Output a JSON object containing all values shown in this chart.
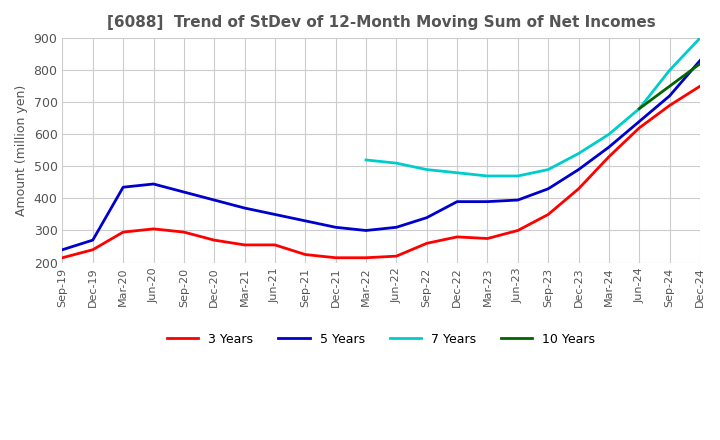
{
  "title": "[6088]  Trend of StDev of 12-Month Moving Sum of Net Incomes",
  "ylabel": "Amount (million yen)",
  "ylim": [
    200,
    900
  ],
  "yticks": [
    200,
    300,
    400,
    500,
    600,
    700,
    800,
    900
  ],
  "background_color": "#ffffff",
  "grid_color": "#cccccc",
  "xtick_labels": [
    "Sep-19",
    "Dec-19",
    "Mar-20",
    "Jun-20",
    "Sep-20",
    "Dec-20",
    "Mar-21",
    "Jun-21",
    "Sep-21",
    "Dec-21",
    "Mar-22",
    "Jun-22",
    "Sep-22",
    "Dec-22",
    "Mar-23",
    "Jun-23",
    "Sep-23",
    "Dec-23",
    "Mar-24",
    "Jun-24",
    "Sep-24",
    "Dec-24"
  ],
  "series": {
    "3yr": {
      "label": "3 Years",
      "color": "#ff0000",
      "xi": [
        0,
        1,
        2,
        3,
        4,
        5,
        6,
        7,
        8,
        9,
        10,
        11,
        12,
        13,
        14,
        15,
        16,
        17,
        18,
        19,
        20,
        21
      ],
      "y": [
        215,
        240,
        295,
        305,
        295,
        270,
        255,
        255,
        225,
        215,
        215,
        220,
        260,
        280,
        275,
        300,
        350,
        430,
        530,
        620,
        690,
        750
      ]
    },
    "5yr": {
      "label": "5 Years",
      "color": "#0000cc",
      "xi": [
        0,
        1,
        2,
        3,
        4,
        5,
        6,
        7,
        8,
        9,
        10,
        11,
        12,
        13,
        14,
        15,
        16,
        17,
        18,
        19,
        20,
        21
      ],
      "y": [
        240,
        270,
        435,
        445,
        420,
        395,
        370,
        350,
        330,
        310,
        300,
        310,
        340,
        390,
        390,
        395,
        430,
        490,
        560,
        640,
        720,
        830
      ]
    },
    "7yr": {
      "label": "7 Years",
      "color": "#00cccc",
      "xi": [
        10,
        11,
        12,
        13,
        14,
        15,
        16,
        17,
        18,
        19,
        20,
        21
      ],
      "y": [
        520,
        510,
        490,
        480,
        470,
        470,
        490,
        540,
        600,
        680,
        800,
        900
      ]
    },
    "10yr": {
      "label": "10 Years",
      "color": "#006600",
      "xi": [
        19,
        20,
        21
      ],
      "y": [
        680,
        750,
        820
      ]
    }
  },
  "title_color": "#555555",
  "tick_color": "#555555",
  "title_fontsize": 11,
  "axis_fontsize": 9,
  "tick_fontsize": 8,
  "linewidth": 2.0
}
